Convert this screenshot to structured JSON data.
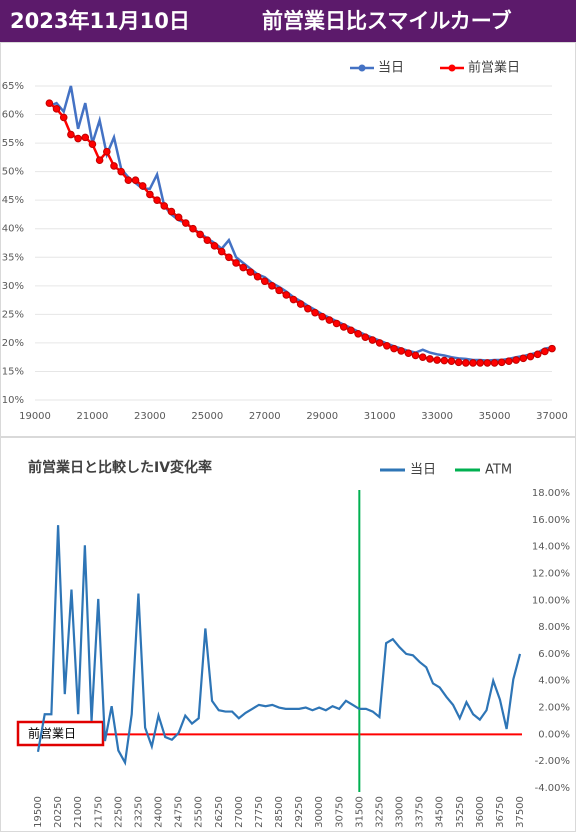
{
  "header": {
    "date": "2023年11月10日",
    "title": "前営業日比スマイルカーブ"
  },
  "chart_data": [
    {
      "type": "line",
      "x": [
        19500,
        19750,
        20000,
        20250,
        20500,
        20750,
        21000,
        21250,
        21500,
        21750,
        22000,
        22250,
        22500,
        22750,
        23000,
        23250,
        23500,
        23750,
        24000,
        24250,
        24500,
        24750,
        25000,
        25250,
        25500,
        25750,
        26000,
        26250,
        26500,
        26750,
        27000,
        27250,
        27500,
        27750,
        28000,
        28250,
        28500,
        28750,
        29000,
        29250,
        29500,
        29750,
        30000,
        30250,
        30500,
        30750,
        31000,
        31250,
        31500,
        31750,
        32000,
        32250,
        32500,
        32750,
        33000,
        33250,
        33500,
        33750,
        34000,
        34250,
        34500,
        34750,
        35000,
        35250,
        35500,
        35750,
        36000,
        36250,
        36500,
        36750,
        37000
      ],
      "series": [
        {
          "name": "当日",
          "color": "#4472c4",
          "values": [
            61.5,
            62,
            60.5,
            65,
            57.5,
            62,
            55,
            59,
            53,
            56,
            50.5,
            49,
            48,
            47,
            47,
            49.5,
            44,
            42.5,
            41.5,
            41,
            40,
            39.2,
            38.3,
            37.5,
            36.5,
            38,
            35,
            34,
            33,
            32,
            31.5,
            30.5,
            29.8,
            29,
            28,
            27.3,
            26.5,
            25.8,
            25,
            24.4,
            23.8,
            23.2,
            22.6,
            22,
            21.4,
            20.9,
            20.4,
            19.9,
            19.4,
            19,
            18.6,
            18.3,
            18.8,
            18.3,
            18,
            17.8,
            17.5,
            17.3,
            17.2,
            17,
            17,
            16.9,
            17,
            17,
            17.2,
            17.5,
            17.7,
            18,
            18.3,
            19,
            19.2
          ]
        },
        {
          "name": "前営業日",
          "color": "#ff0000",
          "values": [
            62,
            61,
            59.5,
            56.5,
            55.8,
            56,
            54.8,
            52,
            53.5,
            51,
            50,
            48.5,
            48.5,
            47.5,
            46,
            45,
            44,
            43,
            42,
            41,
            40,
            39,
            38,
            37,
            36,
            35,
            34,
            33.2,
            32.4,
            31.6,
            30.8,
            30,
            29.2,
            28.4,
            27.6,
            26.8,
            26,
            25.3,
            24.6,
            24,
            23.4,
            22.8,
            22.2,
            21.6,
            21,
            20.5,
            20,
            19.5,
            19,
            18.6,
            18.2,
            17.8,
            17.5,
            17.2,
            17,
            16.9,
            16.8,
            16.6,
            16.5,
            16.5,
            16.5,
            16.5,
            16.5,
            16.6,
            16.8,
            17,
            17.3,
            17.6,
            18,
            18.5,
            19
          ]
        }
      ],
      "xlim": [
        19000,
        37000
      ],
      "xticks": [
        19000,
        21000,
        23000,
        25000,
        27000,
        29000,
        31000,
        33000,
        35000,
        37000
      ],
      "ylim": [
        10,
        65
      ],
      "yticks": [
        {
          "value": 10,
          "label": "10%"
        },
        {
          "value": 15,
          "label": "15%"
        },
        {
          "value": 20,
          "label": "20%"
        },
        {
          "value": 25,
          "label": "25%"
        },
        {
          "value": 30,
          "label": "30%"
        },
        {
          "value": 35,
          "label": "35%"
        },
        {
          "value": 40,
          "label": "40%"
        },
        {
          "value": 45,
          "label": "45%"
        },
        {
          "value": 50,
          "label": "50%"
        },
        {
          "value": 55,
          "label": "55%"
        },
        {
          "value": 60,
          "label": "60%"
        },
        {
          "value": 65,
          "label": "65%"
        }
      ],
      "grid": true,
      "legend": "top-right"
    },
    {
      "type": "line",
      "title": "前営業日と比較したIV変化率",
      "categories": [
        19500,
        null,
        null,
        20250,
        null,
        null,
        21000,
        null,
        null,
        21750,
        null,
        null,
        22500,
        null,
        null,
        23250,
        null,
        null,
        24000,
        null,
        null,
        24750,
        null,
        null,
        25500,
        null,
        null,
        26250,
        null,
        null,
        27000,
        null,
        null,
        27750,
        null,
        null,
        28500,
        null,
        null,
        29250,
        null,
        null,
        30000,
        null,
        null,
        30750,
        null,
        null,
        31500,
        null,
        null,
        32250,
        null,
        null,
        33000,
        null,
        null,
        33750,
        null,
        null,
        34500,
        null,
        null,
        35250,
        null,
        null,
        36000,
        null,
        null,
        36750,
        null,
        null,
        37500
      ],
      "series": [
        {
          "name": "当日",
          "color": "#2e75b6",
          "values": [
            -1.3,
            1.5,
            1.5,
            15.6,
            3,
            10.8,
            1.5,
            14.1,
            1,
            10.1,
            -0.5,
            2.1,
            -1.2,
            -2.1,
            1.5,
            10.5,
            0.5,
            -0.9,
            1.4,
            -0.2,
            -0.4,
            0.1,
            1.4,
            0.8,
            1.2,
            7.9,
            2.5,
            1.8,
            1.7,
            1.7,
            1.2,
            1.6,
            1.9,
            2.2,
            2.1,
            2.2,
            2,
            1.9,
            1.9,
            1.9,
            2,
            1.8,
            2,
            1.8,
            2.1,
            1.9,
            2.5,
            2.2,
            1.9,
            1.9,
            1.7,
            1.3,
            6.8,
            7.1,
            6.5,
            6,
            5.9,
            5.4,
            5,
            3.8,
            3.5,
            2.8,
            2.2,
            1.2,
            2.4,
            1.5,
            1.1,
            1.8,
            4,
            2.6,
            0.4,
            4.1,
            6
          ]
        }
      ],
      "atm": {
        "name": "ATM",
        "color": "#00b050",
        "at": 31500
      },
      "reference": {
        "label": "前営業日",
        "value": 0,
        "color": "#ff0000"
      },
      "ylim": [
        -4,
        18
      ],
      "yticks": [
        {
          "value": -4,
          "label": "-4.00%"
        },
        {
          "value": -2,
          "label": "-2.00%"
        },
        {
          "value": 0,
          "label": "0.00%"
        },
        {
          "value": 2,
          "label": "2.00%"
        },
        {
          "value": 4,
          "label": "4.00%"
        },
        {
          "value": 6,
          "label": "6.00%"
        },
        {
          "value": 8,
          "label": "8.00%"
        },
        {
          "value": 10,
          "label": "10.00%"
        },
        {
          "value": 12,
          "label": "12.00%"
        },
        {
          "value": 14,
          "label": "14.00%"
        },
        {
          "value": 16,
          "label": "16.00%"
        },
        {
          "value": 18,
          "label": "18.00%"
        }
      ],
      "grid": false,
      "legend": "top-right"
    }
  ]
}
